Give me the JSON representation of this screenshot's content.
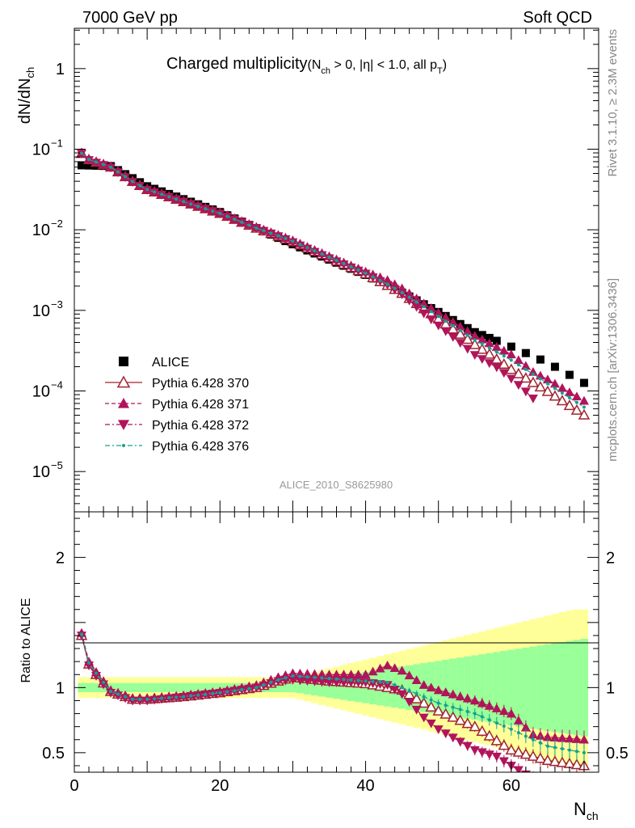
{
  "header": {
    "energy_label": "7000 GeV pp",
    "category_label": "Soft QCD"
  },
  "side_labels": {
    "rivet": "Rivet 3.1.10, ≥ 2.3M events",
    "mcplots": "mcplots.cern.ch [arXiv:1306.3436]"
  },
  "chart_data": {
    "type": "scatter",
    "title_main": "Charged multiplicity",
    "title_cond_1": "(N",
    "title_cond_sub_ch": "ch",
    "title_cond_2": " > 0, |η| < 1.0, all p",
    "title_cond_sub_T": "T",
    "title_cond_3": ")",
    "analysis_label": "ALICE_2010_S8625980",
    "ylabel_main": "dN/dN",
    "ylabel_main_sub": "ch",
    "ylabel_ratio": "Ratio to ALICE",
    "xlabel": "N",
    "xlabel_sub": "ch",
    "xlim": [
      0,
      72
    ],
    "ylim_main_log10": [
      -5.5,
      0.5
    ],
    "ylim_ratio": [
      0.35,
      2.35
    ],
    "x_ticks": [
      0,
      20,
      40,
      60
    ],
    "y_main_ticks": [
      {
        "base": "1",
        "exp": ""
      },
      {
        "base": "10",
        "exp": "−1"
      },
      {
        "base": "10",
        "exp": "−2"
      },
      {
        "base": "10",
        "exp": "−3"
      },
      {
        "base": "10",
        "exp": "−4"
      },
      {
        "base": "10",
        "exp": "−5"
      }
    ],
    "y_ratio_ticks": [
      "2",
      "1",
      "0.5"
    ],
    "legend": {
      "placement": "lower-left",
      "entries": [
        {
          "label": "ALICE",
          "color": "#000000",
          "marker": "square",
          "dash": ""
        },
        {
          "label": "Pythia 6.428 370",
          "color": "#a0242f",
          "marker": "open-triangle-up",
          "dash": ""
        },
        {
          "label": "Pythia 6.428 371",
          "color": "#b0145a",
          "marker": "triangle-up",
          "dash": "5,3"
        },
        {
          "label": "Pythia 6.428 372",
          "color": "#b0145a",
          "marker": "triangle-down",
          "dash": "6,3,2,3"
        },
        {
          "label": "Pythia 6.428 376",
          "color": "#14a092",
          "marker": "dot",
          "dash": "6,3,2,3"
        }
      ]
    },
    "band_colors": {
      "outer": "#ffff99",
      "inner": "#99ff99"
    },
    "data_anchors": {
      "x": [
        1,
        5,
        10,
        20,
        30,
        40,
        45,
        50,
        55,
        60,
        65,
        70
      ],
      "log10_y": [
        -1.2,
        -1.21,
        -1.46,
        -1.78,
        -2.18,
        -2.56,
        -2.78,
        -3.02,
        -3.27,
        -3.45,
        -3.65,
        -3.9
      ]
    },
    "series": [
      {
        "name": "Pythia 6.428 370",
        "ratio_anchors": {
          "x": [
            1,
            2,
            3,
            5,
            8,
            10,
            15,
            20,
            25,
            28,
            30,
            35,
            40,
            43,
            45,
            48,
            50,
            55,
            60,
            65,
            70
          ],
          "y": [
            1.4,
            1.18,
            1.1,
            0.97,
            0.91,
            0.91,
            0.93,
            0.96,
            1.0,
            1.05,
            1.08,
            1.05,
            1.03,
            1.0,
            0.98,
            0.88,
            0.82,
            0.7,
            0.52,
            0.44,
            0.4
          ]
        }
      },
      {
        "name": "Pythia 6.428 371",
        "ratio_anchors": {
          "x": [
            1,
            2,
            3,
            5,
            8,
            10,
            15,
            20,
            25,
            28,
            30,
            35,
            40,
            43,
            45,
            48,
            50,
            55,
            60,
            63,
            65,
            70
          ],
          "y": [
            1.42,
            1.2,
            1.12,
            0.98,
            0.92,
            0.92,
            0.94,
            0.97,
            1.02,
            1.08,
            1.11,
            1.1,
            1.1,
            1.17,
            1.13,
            1.02,
            0.98,
            0.9,
            0.8,
            0.64,
            0.62,
            0.6
          ]
        }
      },
      {
        "name": "Pythia 6.428 372",
        "ratio_anchors": {
          "x": [
            1,
            2,
            3,
            5,
            8,
            10,
            15,
            20,
            25,
            28,
            30,
            35,
            40,
            43,
            45,
            48,
            50,
            55,
            58,
            60,
            63
          ],
          "y": [
            1.4,
            1.17,
            1.09,
            0.96,
            0.9,
            0.9,
            0.93,
            0.96,
            1.0,
            1.05,
            1.06,
            1.04,
            1.04,
            1.02,
            0.95,
            0.77,
            0.68,
            0.52,
            0.47,
            0.4,
            0.3
          ]
        }
      },
      {
        "name": "Pythia 6.428 376",
        "ratio_anchors": {
          "x": [
            1,
            2,
            3,
            5,
            8,
            10,
            15,
            20,
            25,
            28,
            30,
            35,
            40,
            43,
            45,
            48,
            50,
            55,
            60,
            63,
            65,
            70
          ],
          "y": [
            1.41,
            1.19,
            1.11,
            0.97,
            0.91,
            0.91,
            0.93,
            0.96,
            1.0,
            1.06,
            1.09,
            1.07,
            1.05,
            1.04,
            1.0,
            0.93,
            0.88,
            0.8,
            0.68,
            0.6,
            0.55,
            0.5
          ]
        }
      }
    ]
  }
}
